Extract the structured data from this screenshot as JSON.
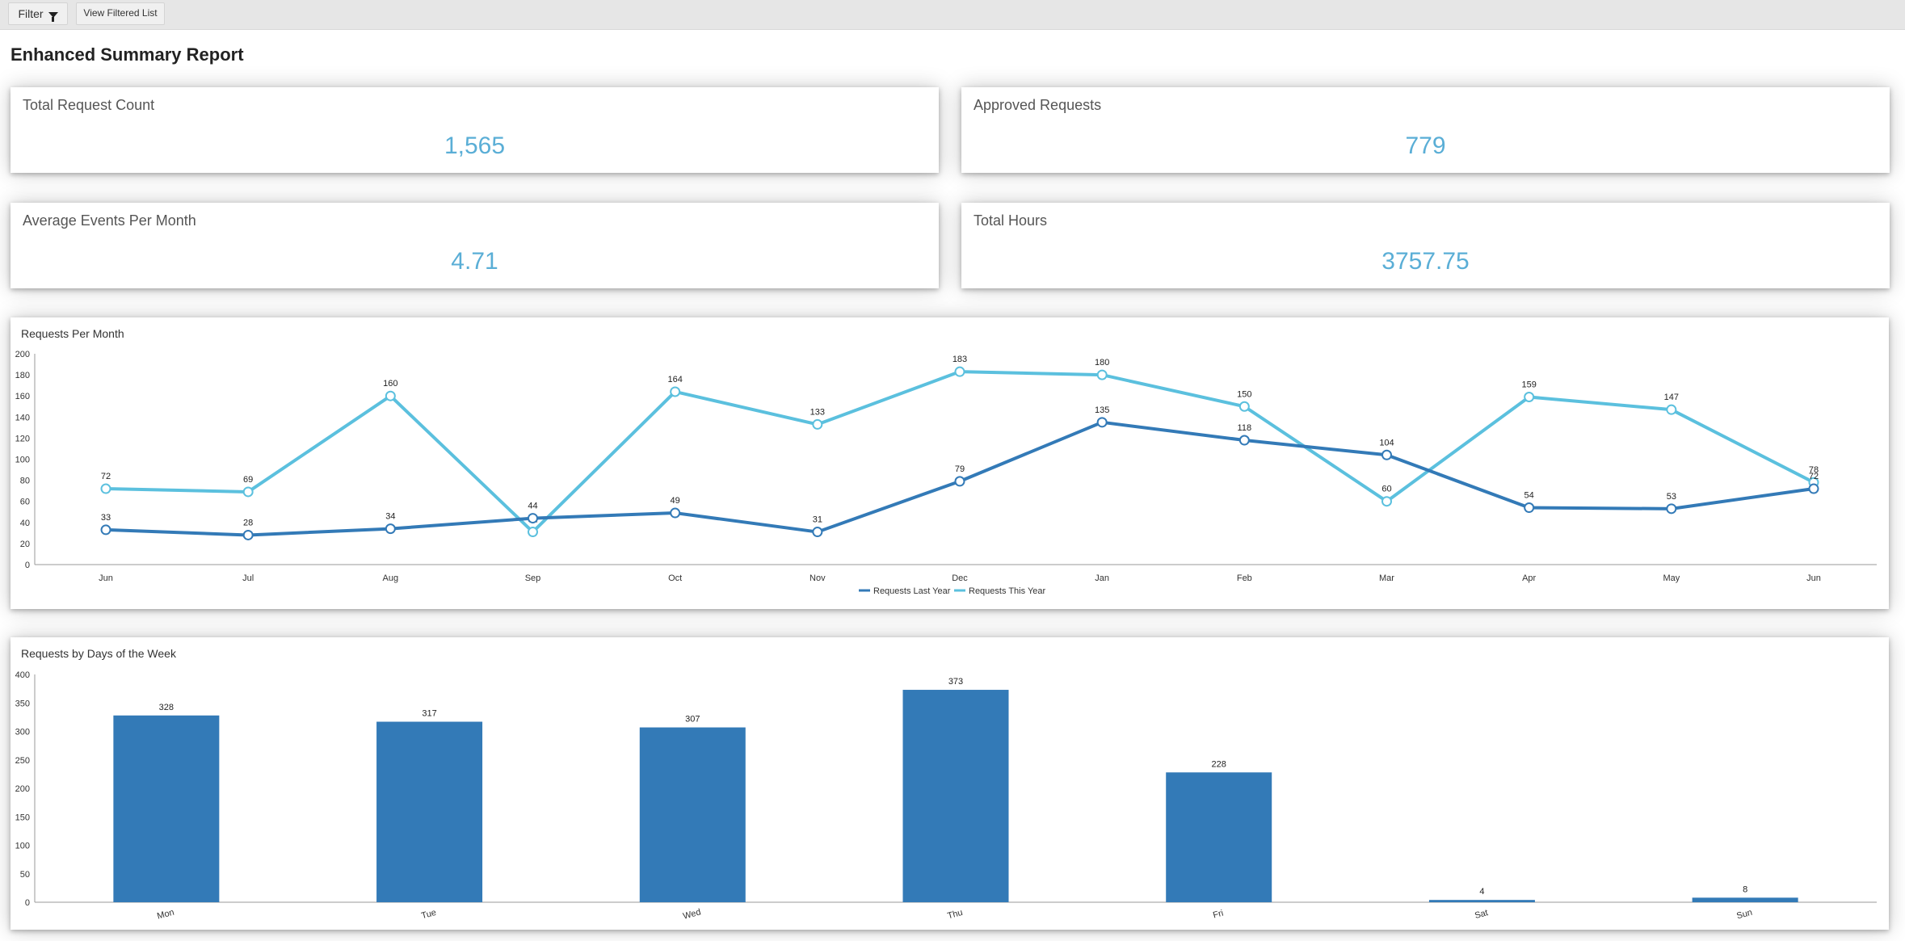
{
  "toolbar": {
    "filter_label": "Filter",
    "view_filtered_label": "View Filtered List",
    "filter_icon": "filter-funnel-icon"
  },
  "page": {
    "title": "Enhanced Summary Report"
  },
  "kpis": [
    {
      "label": "Total Request Count",
      "value": "1,565"
    },
    {
      "label": "Approved Requests",
      "value": "779"
    },
    {
      "label": "Average Events Per Month",
      "value": "4.71"
    },
    {
      "label": "Total Hours",
      "value": "3757.75"
    }
  ],
  "colors": {
    "kpi_value": "#5aaed6",
    "last_year": "#337ab7",
    "this_year": "#5bc0de",
    "bar": "#337ab7"
  },
  "chart_data": [
    {
      "type": "line",
      "title": "Requests Per Month",
      "categories": [
        "Jun",
        "Jul",
        "Aug",
        "Sep",
        "Oct",
        "Nov",
        "Dec",
        "Jan",
        "Feb",
        "Mar",
        "Apr",
        "May",
        "Jun"
      ],
      "series": [
        {
          "name": "Requests Last Year",
          "values": [
            33,
            28,
            34,
            44,
            49,
            31,
            79,
            135,
            118,
            104,
            54,
            53,
            72
          ]
        },
        {
          "name": "Requests This Year",
          "values": [
            72,
            69,
            160,
            31,
            164,
            133,
            183,
            180,
            150,
            60,
            159,
            147,
            78
          ]
        }
      ],
      "ylim": [
        0,
        200
      ],
      "yticks": [
        0,
        20,
        40,
        60,
        80,
        100,
        120,
        140,
        160,
        180,
        200
      ],
      "legend": "bottom",
      "grid": false
    },
    {
      "type": "bar",
      "title": "Requests by Days of the Week",
      "categories": [
        "Mon",
        "Tue",
        "Wed",
        "Thu",
        "Fri",
        "Sat",
        "Sun"
      ],
      "values": [
        328,
        317,
        307,
        373,
        228,
        4,
        8
      ],
      "ylim": [
        0,
        400
      ],
      "yticks": [
        0,
        50,
        100,
        150,
        200,
        250,
        300,
        350,
        400
      ],
      "grid": false
    }
  ]
}
